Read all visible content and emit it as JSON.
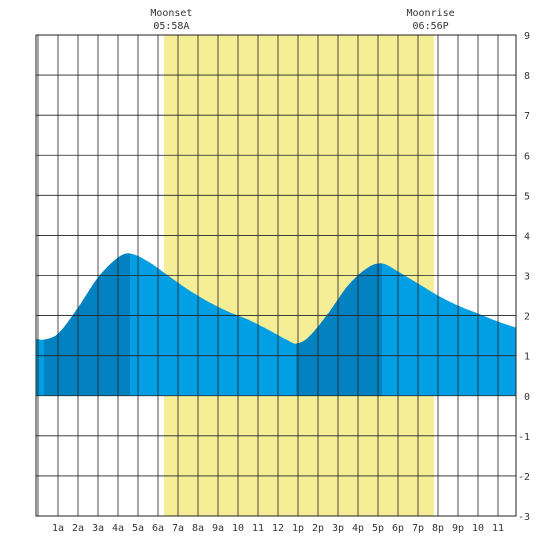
{
  "chart_data": {
    "type": "area",
    "title": "",
    "xlabel": "",
    "ylabel": "",
    "xlim": [
      -0.1,
      23.9
    ],
    "ylim": [
      -3,
      9
    ],
    "grid": true,
    "x_ticks": [
      {
        "x": 1,
        "label": "1a"
      },
      {
        "x": 2,
        "label": "2a"
      },
      {
        "x": 3,
        "label": "3a"
      },
      {
        "x": 4,
        "label": "4a"
      },
      {
        "x": 5,
        "label": "5a"
      },
      {
        "x": 6,
        "label": "6a"
      },
      {
        "x": 7,
        "label": "7a"
      },
      {
        "x": 8,
        "label": "8a"
      },
      {
        "x": 9,
        "label": "9a"
      },
      {
        "x": 10,
        "label": "10"
      },
      {
        "x": 11,
        "label": "11"
      },
      {
        "x": 12,
        "label": "12"
      },
      {
        "x": 13,
        "label": "1p"
      },
      {
        "x": 14,
        "label": "2p"
      },
      {
        "x": 15,
        "label": "3p"
      },
      {
        "x": 16,
        "label": "4p"
      },
      {
        "x": 17,
        "label": "5p"
      },
      {
        "x": 18,
        "label": "6p"
      },
      {
        "x": 19,
        "label": "7p"
      },
      {
        "x": 20,
        "label": "8p"
      },
      {
        "x": 21,
        "label": "9p"
      },
      {
        "x": 22,
        "label": "10"
      },
      {
        "x": 23,
        "label": "11"
      }
    ],
    "y_ticks": [
      -3,
      -2,
      -1,
      0,
      1,
      2,
      3,
      4,
      5,
      6,
      7,
      8,
      9
    ],
    "daylight": {
      "start": 6.3,
      "end": 19.8
    },
    "annotations": [
      {
        "x": 6.97,
        "label": "Moonset",
        "time": "05:58A"
      },
      {
        "x": 19.93,
        "label": "Moonrise",
        "time": "06:56P"
      }
    ],
    "extremes": [
      {
        "x": 0.3,
        "kind": "low",
        "value": 1.4
      },
      {
        "x": 4.6,
        "kind": "high",
        "value": 3.55
      },
      {
        "x": 12.9,
        "kind": "low",
        "value": 1.3
      },
      {
        "x": 17.2,
        "kind": "high",
        "value": 3.3
      },
      {
        "x": 23.9,
        "kind": "end",
        "value": 1.7
      }
    ],
    "series": [
      {
        "points": [
          [
            -0.1,
            1.42
          ],
          [
            0.3,
            1.4
          ],
          [
            1.0,
            1.55
          ],
          [
            2.0,
            2.2
          ],
          [
            3.0,
            2.95
          ],
          [
            4.0,
            3.45
          ],
          [
            4.6,
            3.55
          ],
          [
            5.5,
            3.35
          ],
          [
            6.5,
            3.0
          ],
          [
            7.5,
            2.65
          ],
          [
            8.5,
            2.35
          ],
          [
            9.5,
            2.1
          ],
          [
            10.5,
            1.9
          ],
          [
            11.5,
            1.65
          ],
          [
            12.5,
            1.38
          ],
          [
            12.9,
            1.3
          ],
          [
            13.5,
            1.45
          ],
          [
            14.5,
            2.05
          ],
          [
            15.5,
            2.75
          ],
          [
            16.5,
            3.2
          ],
          [
            17.2,
            3.3
          ],
          [
            18.0,
            3.1
          ],
          [
            19.0,
            2.8
          ],
          [
            20.0,
            2.5
          ],
          [
            21.0,
            2.25
          ],
          [
            22.0,
            2.05
          ],
          [
            23.0,
            1.85
          ],
          [
            23.9,
            1.7
          ]
        ]
      }
    ],
    "colors": {
      "daylight": "#f5ee96",
      "tide_light": "#039fe4",
      "tide_dark": "#0282c0",
      "grid": "#222222",
      "background": "#ffffff"
    }
  }
}
